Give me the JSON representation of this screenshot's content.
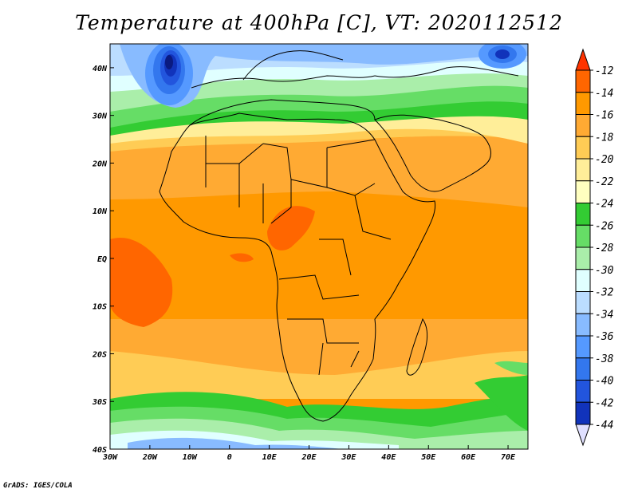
{
  "title": "Temperature at 400hPa [C], VT: 2020112512",
  "credit": "GrADS: IGES/COLA",
  "map": {
    "field": "Temperature at 400hPa",
    "units": "C",
    "valid_time": "2020112512",
    "lon_range": [
      -30,
      75
    ],
    "lat_range": [
      -40,
      45
    ],
    "lon_ticks": [
      {
        "value": -30,
        "label": "30W"
      },
      {
        "value": -20,
        "label": "20W"
      },
      {
        "value": -10,
        "label": "10W"
      },
      {
        "value": 0,
        "label": "0"
      },
      {
        "value": 10,
        "label": "10E"
      },
      {
        "value": 20,
        "label": "20E"
      },
      {
        "value": 30,
        "label": "30E"
      },
      {
        "value": 40,
        "label": "40E"
      },
      {
        "value": 50,
        "label": "50E"
      },
      {
        "value": 60,
        "label": "60E"
      },
      {
        "value": 70,
        "label": "70E"
      }
    ],
    "lat_ticks": [
      {
        "value": 40,
        "label": "40N"
      },
      {
        "value": 30,
        "label": "30N"
      },
      {
        "value": 20,
        "label": "20N"
      },
      {
        "value": 10,
        "label": "10N"
      },
      {
        "value": 0,
        "label": "EQ"
      },
      {
        "value": -10,
        "label": "10S"
      },
      {
        "value": -20,
        "label": "20S"
      },
      {
        "value": -30,
        "label": "30S"
      },
      {
        "value": -40,
        "label": "40S"
      }
    ]
  },
  "colorbar": {
    "levels": [
      -12,
      -14,
      -16,
      -18,
      -20,
      -22,
      -24,
      -26,
      -28,
      -30,
      -32,
      -34,
      -36,
      -38,
      -40,
      -42,
      -44
    ],
    "colors": [
      "#ff3300",
      "#ff6600",
      "#ff9900",
      "#ffaa33",
      "#ffcc55",
      "#ffee99",
      "#ffffc0",
      "#33cc33",
      "#66dd66",
      "#aaeeaa",
      "#e0ffff",
      "#bbddff",
      "#88bbff",
      "#5599ff",
      "#3377ee",
      "#2255dd",
      "#1133bb",
      "#0a1a80"
    ]
  }
}
